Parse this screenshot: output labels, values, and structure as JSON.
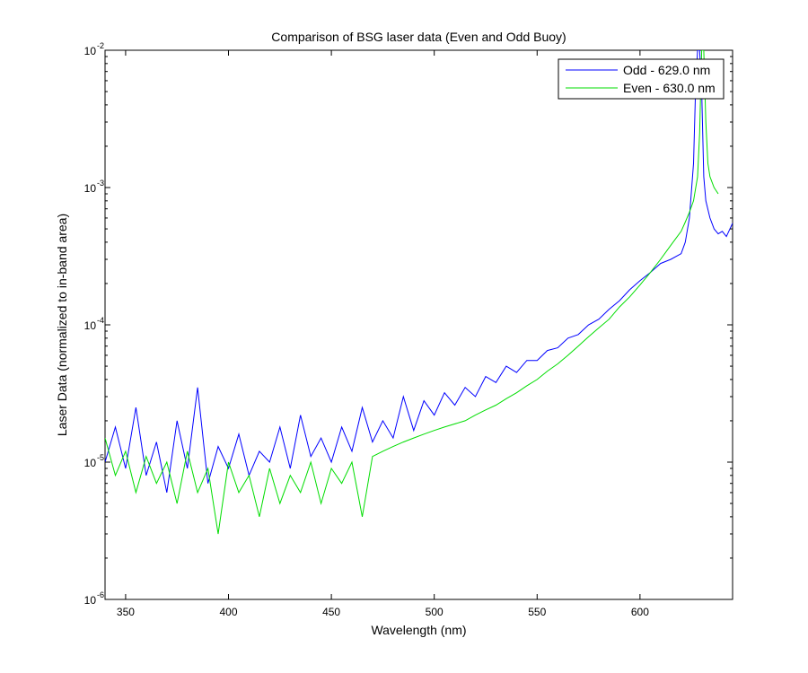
{
  "chart_data": {
    "type": "line",
    "title": "Comparison of BSG laser data (Even and Odd Buoy)",
    "xlabel": "Wavelength (nm)",
    "ylabel": "Laser Data (normalized to in-band area)",
    "xlim": [
      340,
      645
    ],
    "ylim": [
      1e-06,
      0.01
    ],
    "y_scale": "log",
    "x_ticks": [
      350,
      400,
      450,
      500,
      550,
      600
    ],
    "y_ticks": [
      {
        "value": 1e-06,
        "base": "10",
        "exp": "-6"
      },
      {
        "value": 1e-05,
        "base": "10",
        "exp": "-5"
      },
      {
        "value": 0.0001,
        "base": "10",
        "exp": "-4"
      },
      {
        "value": 0.001,
        "base": "10",
        "exp": "-3"
      },
      {
        "value": 0.01,
        "base": "10",
        "exp": "-2"
      }
    ],
    "grid": false,
    "legend_position": "top-right",
    "series": [
      {
        "name": "Odd - 629.0 nm",
        "color": "#0000ff",
        "x": [
          340,
          345,
          350,
          355,
          360,
          365,
          370,
          375,
          380,
          385,
          390,
          395,
          400,
          405,
          410,
          415,
          420,
          425,
          430,
          435,
          440,
          445,
          450,
          455,
          460,
          465,
          470,
          475,
          480,
          485,
          490,
          495,
          500,
          505,
          510,
          515,
          520,
          525,
          530,
          535,
          540,
          545,
          550,
          555,
          560,
          565,
          570,
          575,
          580,
          585,
          590,
          595,
          600,
          605,
          610,
          615,
          620,
          622,
          624,
          626,
          627,
          628,
          629,
          630,
          631,
          632,
          634,
          636,
          638,
          640,
          642,
          645
        ],
        "y": [
          1e-05,
          1.8e-05,
          9e-06,
          2.5e-05,
          8e-06,
          1.4e-05,
          6e-06,
          2e-05,
          9e-06,
          3.5e-05,
          7e-06,
          1.3e-05,
          9e-06,
          1.6e-05,
          8e-06,
          1.2e-05,
          1e-05,
          1.8e-05,
          9e-06,
          2.2e-05,
          1.1e-05,
          1.5e-05,
          1e-05,
          1.8e-05,
          1.2e-05,
          2.5e-05,
          1.4e-05,
          2e-05,
          1.5e-05,
          3e-05,
          1.7e-05,
          2.8e-05,
          2.2e-05,
          3.2e-05,
          2.6e-05,
          3.5e-05,
          3e-05,
          4.2e-05,
          3.8e-05,
          5e-05,
          4.5e-05,
          5.5e-05,
          5.5e-05,
          6.5e-05,
          6.8e-05,
          8e-05,
          8.5e-05,
          0.0001,
          0.00011,
          0.00013,
          0.00015,
          0.00018,
          0.00021,
          0.00024,
          0.00028,
          0.0003,
          0.00033,
          0.0004,
          0.0006,
          0.0015,
          0.005,
          0.012,
          0.012,
          0.005,
          0.0012,
          0.0008,
          0.0006,
          0.0005,
          0.00046,
          0.00048,
          0.00044,
          0.00055
        ]
      },
      {
        "name": "Even - 630.0 nm",
        "color": "#00dd00",
        "x": [
          340,
          345,
          350,
          355,
          360,
          365,
          370,
          375,
          380,
          385,
          390,
          395,
          400,
          405,
          410,
          415,
          420,
          425,
          430,
          435,
          440,
          445,
          450,
          455,
          460,
          465,
          470,
          475,
          480,
          485,
          490,
          495,
          500,
          505,
          510,
          515,
          520,
          525,
          530,
          535,
          540,
          545,
          550,
          555,
          560,
          565,
          570,
          575,
          580,
          585,
          590,
          595,
          600,
          605,
          610,
          615,
          620,
          622,
          624,
          626,
          628,
          629,
          630,
          631,
          632,
          633,
          634,
          636,
          638
        ],
        "y": [
          1.5e-05,
          8e-06,
          1.2e-05,
          6e-06,
          1.1e-05,
          7e-06,
          1e-05,
          5e-06,
          1.2e-05,
          6e-06,
          9e-06,
          3e-06,
          1e-05,
          6e-06,
          8e-06,
          4e-06,
          9e-06,
          5e-06,
          8e-06,
          6e-06,
          1e-05,
          5e-06,
          9e-06,
          7e-06,
          1e-05,
          4e-06,
          1.1e-05,
          1.2e-05,
          1.3e-05,
          1.4e-05,
          1.5e-05,
          1.6e-05,
          1.7e-05,
          1.8e-05,
          1.9e-05,
          2e-05,
          2.2e-05,
          2.4e-05,
          2.6e-05,
          2.9e-05,
          3.2e-05,
          3.6e-05,
          4e-05,
          4.6e-05,
          5.2e-05,
          6e-05,
          7e-05,
          8.2e-05,
          9.5e-05,
          0.00011,
          0.000135,
          0.00016,
          0.000195,
          0.00024,
          0.0003,
          0.00038,
          0.00048,
          0.00056,
          0.00066,
          0.0008,
          0.0012,
          0.0025,
          0.012,
          0.012,
          0.003,
          0.0015,
          0.0012,
          0.001,
          0.0009
        ]
      }
    ]
  }
}
